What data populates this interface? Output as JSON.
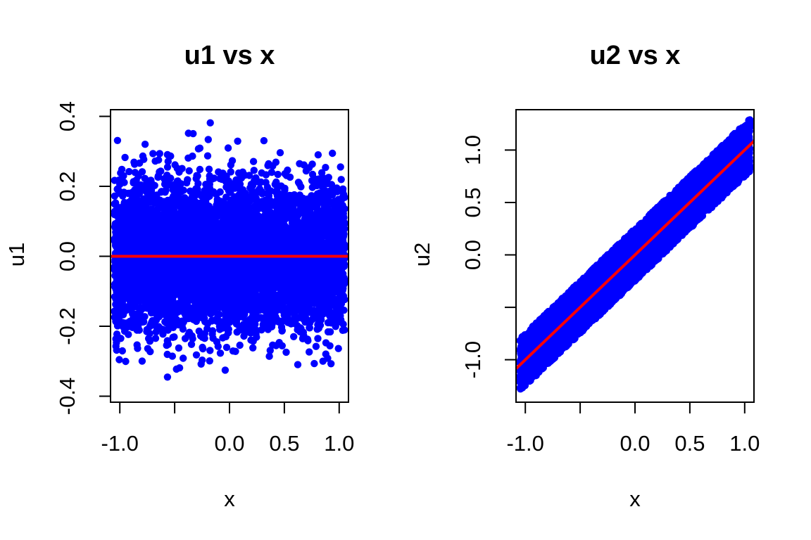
{
  "figure": {
    "background": "#ffffff",
    "colors": {
      "points": "#0000ff",
      "fit_line": "#ff0000",
      "axis": "#000000",
      "text": "#000000"
    }
  },
  "chart_data": [
    {
      "type": "scatter",
      "title": "u1 vs x",
      "xlabel": "x",
      "ylabel": "u1",
      "xlim": [
        -1.085,
        1.085
      ],
      "ylim": [
        -0.417,
        0.419
      ],
      "x_ticks": {
        "values": [
          -1.0,
          -0.5,
          0.0,
          0.5,
          1.0
        ],
        "labels": [
          "-1.0",
          "",
          "0.0",
          "0.5",
          "1.0"
        ]
      },
      "y_ticks": {
        "values": [
          -0.4,
          -0.2,
          0.0,
          0.2,
          0.4
        ],
        "labels": [
          "-0.4",
          "-0.2",
          "0.0",
          "0.2",
          "0.4"
        ]
      },
      "points_model": {
        "n": 6000,
        "x_distribution": {
          "type": "uniform",
          "min": -1.05,
          "max": 1.05
        },
        "relation": {
          "intercept": 0,
          "slope": 0
        },
        "noise": {
          "type": "normal",
          "sd": 0.105,
          "max_abs": 0.395
        },
        "marker": "filled-circle"
      },
      "fit_line": {
        "intercept": 0,
        "slope": 0
      },
      "grid": false,
      "legend": null
    },
    {
      "type": "scatter",
      "title": "u2 vs x",
      "xlabel": "x",
      "ylabel": "u2",
      "xlim": [
        -1.085,
        1.085
      ],
      "ylim": [
        -1.405,
        1.385
      ],
      "x_ticks": {
        "values": [
          -1.0,
          -0.5,
          0.0,
          0.5,
          1.0
        ],
        "labels": [
          "-1.0",
          "",
          "0.0",
          "0.5",
          "1.0"
        ]
      },
      "y_ticks": {
        "values": [
          -1.0,
          -0.5,
          0.0,
          0.5,
          1.0
        ],
        "labels": [
          "-1.0",
          "",
          "0.0",
          "0.5",
          "1.0"
        ]
      },
      "points_model": {
        "n": 6000,
        "x_distribution": {
          "type": "uniform",
          "min": -1.05,
          "max": 1.05
        },
        "relation": {
          "intercept": 0,
          "slope": 1
        },
        "noise": {
          "type": "uniform",
          "half_width": 0.25
        },
        "marker": "filled-circle"
      },
      "fit_line": {
        "intercept": 0,
        "slope": 1
      },
      "grid": false,
      "legend": null
    }
  ]
}
